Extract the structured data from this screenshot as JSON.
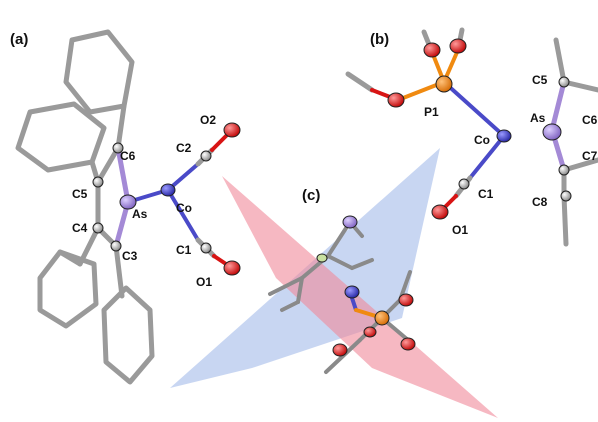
{
  "panels": {
    "a": "(a)",
    "b": "(b)",
    "c": "(c)"
  },
  "labels_a": {
    "O2": "O2",
    "C2": "C2",
    "Co": "Co",
    "C1": "C1",
    "O1": "O1",
    "C6": "C6",
    "C5": "C5",
    "As": "As",
    "C4": "C4",
    "C3": "C3"
  },
  "labels_b": {
    "P1": "P1",
    "Co": "Co",
    "C1": "C1",
    "O1": "O1",
    "C5": "C5",
    "As": "As",
    "C6": "C6",
    "C7": "C7",
    "C8": "C8"
  },
  "colors": {
    "carbon_bond": "#9a9a9a",
    "arsenic": "#a48ad6",
    "cobalt": "#4a4ac8",
    "oxygen": "#d81414",
    "phosphorus": "#f08a10",
    "plane_blue": "#9ab4e8",
    "plane_red": "#f0889a"
  }
}
